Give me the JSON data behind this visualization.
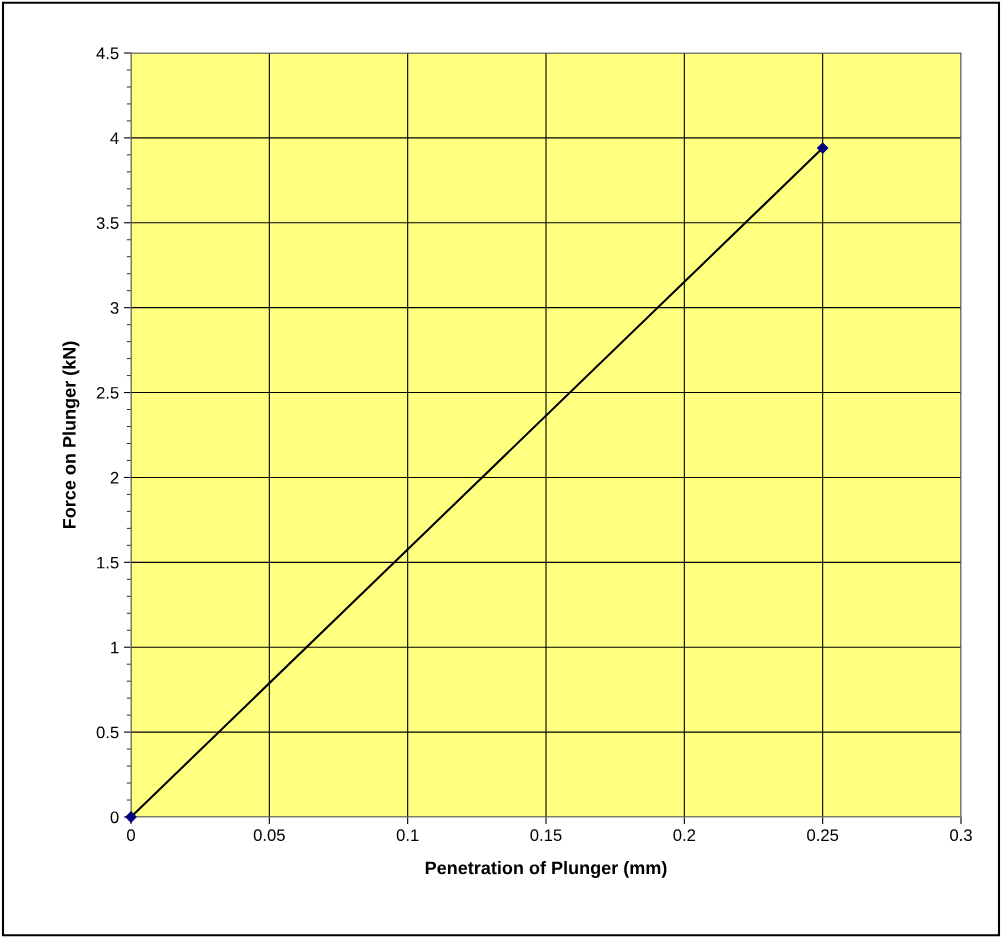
{
  "chart_data": {
    "type": "line",
    "xlabel": "Penetration of Plunger (mm)",
    "ylabel": "Force on Plunger (kN)",
    "x": [
      0,
      0.25
    ],
    "series": [
      {
        "color": "#000000",
        "values": [
          0,
          3.94
        ]
      }
    ],
    "marker": "diamond",
    "line_style": "solid",
    "grid": true,
    "xlim": [
      0,
      0.3
    ],
    "xticks": [
      0,
      0.05,
      0.1,
      0.15,
      0.2,
      0.25,
      0.3
    ],
    "ylim": [
      0,
      4.5
    ],
    "yticks": [
      0,
      0.5,
      1,
      1.5,
      2,
      2.5,
      3,
      3.5,
      4,
      4.5
    ]
  }
}
